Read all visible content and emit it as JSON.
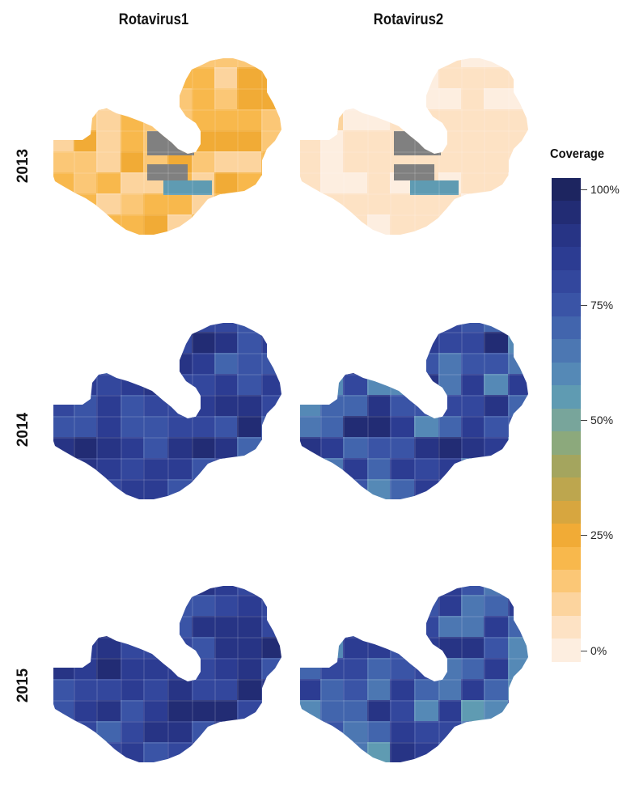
{
  "columns": [
    "Rotavirus1",
    "Rotavirus2"
  ],
  "rows": [
    "2013",
    "2014",
    "2015"
  ],
  "legend": {
    "title": "Coverage",
    "ticks": [
      {
        "label": "100%",
        "value": 100
      },
      {
        "label": "75%",
        "value": 75
      },
      {
        "label": "50%",
        "value": 50
      },
      {
        "label": "25%",
        "value": 25
      },
      {
        "label": "0%",
        "value": 0
      }
    ],
    "colors": [
      "#fdeee0",
      "#fde2c4",
      "#fcd49e",
      "#fbc776",
      "#f8b84c",
      "#f1ab36",
      "#d7a63f",
      "#bda64e",
      "#a4a55e",
      "#8ca97c",
      "#78a59b",
      "#5f9bb2",
      "#5589b6",
      "#4c77b2",
      "#4265ad",
      "#3a54a6",
      "#33479d",
      "#2c3c92",
      "#273485",
      "#222c74",
      "#1d2560"
    ],
    "no_data_color": "#808080"
  },
  "panels": [
    {
      "col": "Rotavirus1",
      "row": "2013",
      "mean_coverage": 18,
      "spread": 8,
      "no_data": true,
      "highlight_south": true
    },
    {
      "col": "Rotavirus2",
      "row": "2013",
      "mean_coverage": 4,
      "spread": 4,
      "no_data": true,
      "highlight_south": true
    },
    {
      "col": "Rotavirus1",
      "row": "2014",
      "mean_coverage": 82,
      "spread": 12,
      "no_data": false,
      "highlight_south": false
    },
    {
      "col": "Rotavirus2",
      "row": "2014",
      "mean_coverage": 76,
      "spread": 18,
      "no_data": false,
      "highlight_south": false
    },
    {
      "col": "Rotavirus1",
      "row": "2015",
      "mean_coverage": 83,
      "spread": 11,
      "no_data": false,
      "highlight_south": false
    },
    {
      "col": "Rotavirus2",
      "row": "2015",
      "mean_coverage": 72,
      "spread": 17,
      "no_data": false,
      "highlight_south": false
    }
  ]
}
